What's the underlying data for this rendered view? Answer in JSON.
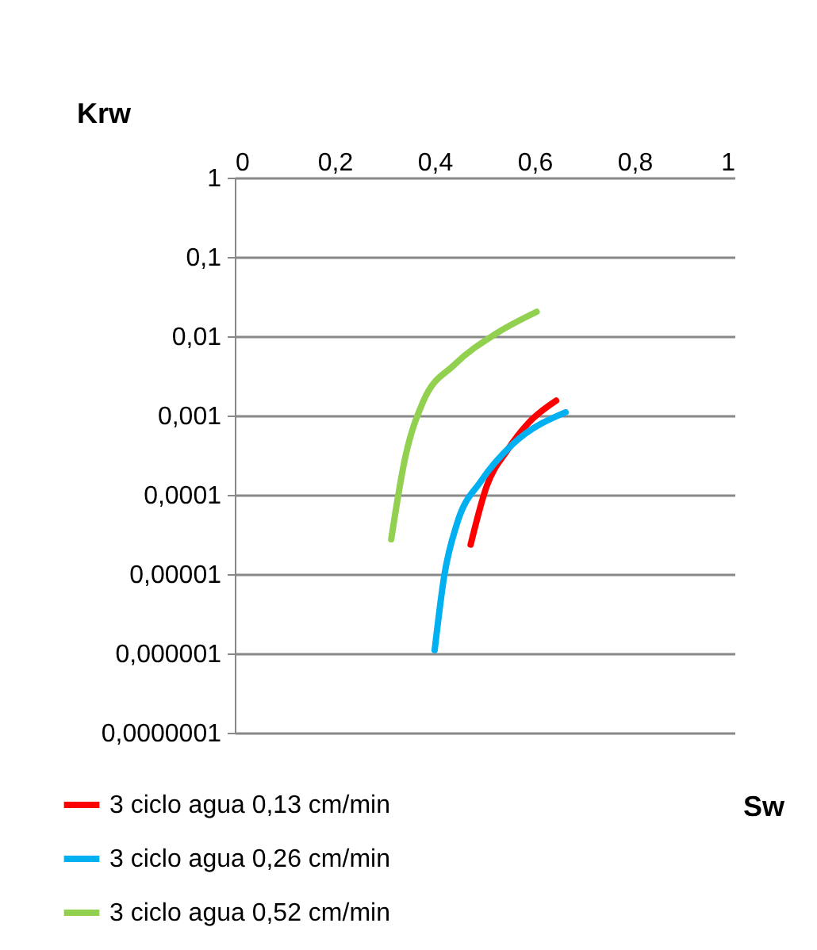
{
  "chart_data": {
    "type": "line",
    "xlabel": "Sw",
    "ylabel": "Krw",
    "log": "y",
    "grid": "y",
    "legend": "bottom left",
    "line_style": "solid",
    "marker": "none",
    "xlim": [
      0,
      1
    ],
    "xticks": [
      {
        "value": 0,
        "label": "0"
      },
      {
        "value": 0.2,
        "label": "0,2"
      },
      {
        "value": 0.4,
        "label": "0,4"
      },
      {
        "value": 0.6,
        "label": "0,6"
      },
      {
        "value": 0.8,
        "label": "0,8"
      },
      {
        "value": 1,
        "label": "1"
      }
    ],
    "ylim": [
      1e-07,
      1
    ],
    "yticks": [
      {
        "value": 1,
        "label": "1"
      },
      {
        "value": 0.1,
        "label": "0,1"
      },
      {
        "value": 0.01,
        "label": "0,01"
      },
      {
        "value": 0.001,
        "label": "0,001"
      },
      {
        "value": 0.0001,
        "label": "0,0001"
      },
      {
        "value": 1e-05,
        "label": "0,00001"
      },
      {
        "value": 1e-06,
        "label": "0,000001"
      },
      {
        "value": 1e-07,
        "label": "0,0000001"
      }
    ],
    "series": [
      {
        "name": "3 ciclo agua  0,13 cm/min",
        "color": "#ff0000",
        "x": [
          0.472,
          0.504,
          0.546,
          0.588,
          0.643
        ],
        "values": [
          2.36e-05,
          0.000128,
          0.00037,
          0.00081,
          0.00154
        ]
      },
      {
        "name": "3 ciclo agua 0,26 cm/min",
        "color": "#00b0f0",
        "x": [
          0.4,
          0.419,
          0.445,
          0.493,
          0.557,
          0.662
        ],
        "values": [
          1.1e-06,
          9.4e-06,
          4.4e-05,
          0.00015,
          0.00044,
          0.0011
        ]
      },
      {
        "name": "3 ciclo agua 0,52 cm/min",
        "color": "#92d050",
        "x": [
          0.313,
          0.34,
          0.377,
          0.44,
          0.525,
          0.604
        ],
        "values": [
          2.75e-05,
          0.000275,
          0.0015,
          0.0044,
          0.011,
          0.0203
        ]
      }
    ]
  }
}
